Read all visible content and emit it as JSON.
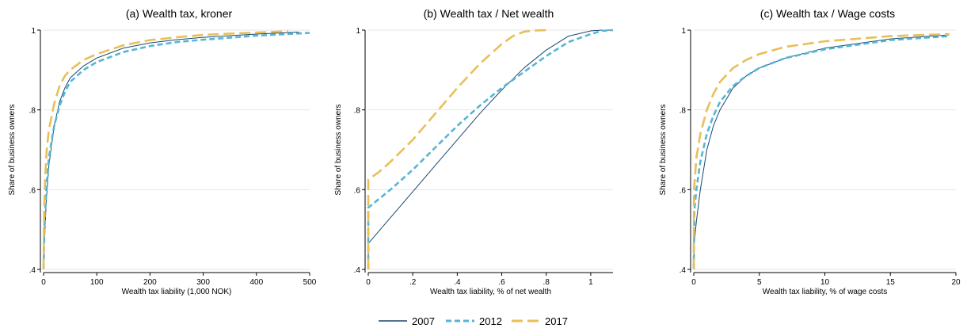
{
  "legend": [
    {
      "name": "2007",
      "color": "#1a476f",
      "dash": "solid"
    },
    {
      "name": "2012",
      "color": "#55b6d6",
      "dash": "dashed"
    },
    {
      "name": "2017",
      "color": "#e8bf59",
      "dash": "longdash"
    }
  ],
  "chart_data": [
    {
      "type": "line",
      "title": "(a) Wealth tax, kroner",
      "xlabel": "Wealth tax liability (1,000 NOK)",
      "ylabel": "Share of business owners",
      "xlim": [
        0,
        500
      ],
      "ylim": [
        0.4,
        1.0
      ],
      "xticks": [
        0,
        100,
        200,
        300,
        400,
        500
      ],
      "xtick_labels": [
        "0",
        "100",
        "200",
        "300",
        "400",
        "500"
      ],
      "yticks": [
        0.4,
        0.6,
        0.8,
        1.0
      ],
      "ytick_labels": [
        ".4",
        ".6",
        ".8",
        "1"
      ],
      "grid": true,
      "series": [
        {
          "name": "2007",
          "x": [
            0,
            2,
            5,
            10,
            20,
            30,
            40,
            50,
            75,
            100,
            150,
            200,
            250,
            300,
            400,
            480
          ],
          "y": [
            0.4,
            0.48,
            0.57,
            0.66,
            0.76,
            0.82,
            0.855,
            0.88,
            0.91,
            0.93,
            0.955,
            0.968,
            0.976,
            0.982,
            0.99,
            0.995
          ]
        },
        {
          "name": "2012",
          "x": [
            0,
            2,
            5,
            10,
            20,
            30,
            40,
            50,
            75,
            100,
            150,
            200,
            250,
            300,
            400,
            500
          ],
          "y": [
            0.4,
            0.52,
            0.6,
            0.68,
            0.76,
            0.81,
            0.845,
            0.87,
            0.9,
            0.92,
            0.945,
            0.96,
            0.97,
            0.976,
            0.986,
            0.993
          ]
        },
        {
          "name": "2017",
          "x": [
            0,
            1,
            3,
            6,
            10,
            20,
            30,
            40,
            50,
            75,
            100,
            150,
            200,
            250,
            300,
            400,
            460
          ],
          "y": [
            0.4,
            0.55,
            0.63,
            0.7,
            0.75,
            0.815,
            0.86,
            0.885,
            0.9,
            0.925,
            0.94,
            0.962,
            0.975,
            0.982,
            0.988,
            0.994,
            0.997
          ]
        }
      ]
    },
    {
      "type": "line",
      "title": "(b) Wealth tax / Net wealth",
      "xlabel": "Wealth tax liability, % of net wealth",
      "ylabel": "Share of business owners",
      "xlim": [
        0,
        1.1
      ],
      "ylim": [
        0.4,
        1.0
      ],
      "xticks": [
        0,
        0.2,
        0.4,
        0.6,
        0.8,
        1.0
      ],
      "xtick_labels": [
        "0",
        ".2",
        ".4",
        ".6",
        ".8",
        "1"
      ],
      "yticks": [
        0.4,
        0.6,
        0.8,
        1.0
      ],
      "ytick_labels": [
        ".4",
        ".6",
        ".8",
        "1"
      ],
      "grid": true,
      "series": [
        {
          "name": "2007",
          "x": [
            0,
            0,
            0.1,
            0.2,
            0.3,
            0.4,
            0.5,
            0.6,
            0.7,
            0.8,
            0.9,
            1.0,
            1.05,
            1.1
          ],
          "y": [
            0.4,
            0.465,
            0.53,
            0.595,
            0.66,
            0.725,
            0.79,
            0.85,
            0.905,
            0.95,
            0.985,
            0.998,
            1.0,
            1.0
          ]
        },
        {
          "name": "2012",
          "x": [
            0,
            0,
            0.1,
            0.2,
            0.3,
            0.4,
            0.5,
            0.6,
            0.7,
            0.8,
            0.9,
            1.0,
            1.05,
            1.1
          ],
          "y": [
            0.4,
            0.555,
            0.6,
            0.65,
            0.705,
            0.76,
            0.81,
            0.855,
            0.895,
            0.935,
            0.97,
            0.99,
            0.998,
            1.0
          ]
        },
        {
          "name": "2017",
          "x": [
            0,
            0,
            0.05,
            0.1,
            0.2,
            0.3,
            0.4,
            0.5,
            0.6,
            0.65,
            0.7,
            0.75,
            0.8
          ],
          "y": [
            0.4,
            0.625,
            0.645,
            0.67,
            0.725,
            0.79,
            0.855,
            0.915,
            0.965,
            0.985,
            0.996,
            0.999,
            1.0
          ]
        }
      ]
    },
    {
      "type": "line",
      "title": "(c) Wealth tax / Wage costs",
      "xlabel": "Wealth tax liability, % of wage costs",
      "ylabel": "Share of business owners",
      "xlim": [
        0,
        20
      ],
      "ylim": [
        0.4,
        1.0
      ],
      "xticks": [
        0,
        5,
        10,
        15,
        20
      ],
      "xtick_labels": [
        "0",
        "5",
        "10",
        "15",
        "20"
      ],
      "yticks": [
        0.4,
        0.6,
        0.8,
        1.0
      ],
      "ytick_labels": [
        ".4",
        ".6",
        ".8",
        "1"
      ],
      "grid": true,
      "series": [
        {
          "name": "2007",
          "x": [
            0,
            0.05,
            0.2,
            0.5,
            1,
            1.5,
            2,
            3,
            4,
            5,
            7,
            10,
            15,
            19.5
          ],
          "y": [
            0.4,
            0.47,
            0.52,
            0.6,
            0.7,
            0.76,
            0.8,
            0.855,
            0.885,
            0.905,
            0.93,
            0.955,
            0.978,
            0.988
          ]
        },
        {
          "name": "2012",
          "x": [
            0,
            0.05,
            0.2,
            0.5,
            1,
            1.5,
            2,
            3,
            4,
            5,
            7,
            10,
            15,
            19.5
          ],
          "y": [
            0.4,
            0.55,
            0.6,
            0.67,
            0.74,
            0.785,
            0.82,
            0.86,
            0.885,
            0.905,
            0.93,
            0.952,
            0.975,
            0.985
          ]
        },
        {
          "name": "2017",
          "x": [
            0,
            0.02,
            0.2,
            0.5,
            1,
            1.5,
            2,
            3,
            4,
            5,
            7,
            10,
            15,
            19.5
          ],
          "y": [
            0.4,
            0.6,
            0.68,
            0.74,
            0.8,
            0.84,
            0.87,
            0.905,
            0.925,
            0.94,
            0.958,
            0.972,
            0.985,
            0.99
          ]
        }
      ]
    }
  ]
}
